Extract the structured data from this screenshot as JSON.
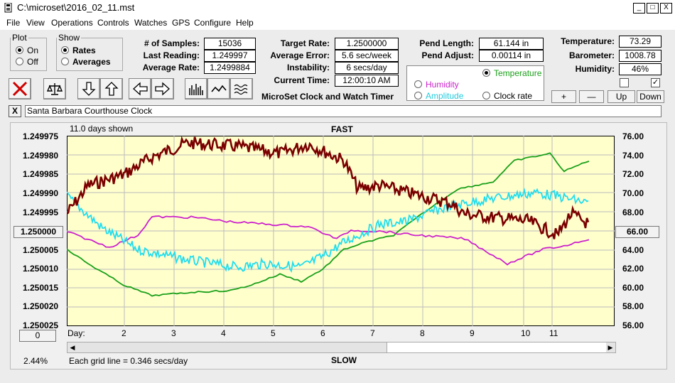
{
  "titlebar": {
    "title": "C:\\microset\\2016_02_11.mst",
    "minimize": "_",
    "maximize": "□",
    "close": "X"
  },
  "menu": [
    "File",
    "View",
    "Operations",
    "Controls",
    "Watches",
    "GPS",
    "Configure",
    "Help"
  ],
  "plot_group": {
    "legend": "Plot",
    "on": "On",
    "off": "Off"
  },
  "show_group": {
    "legend": "Show",
    "rates": "Rates",
    "averages": "Averages"
  },
  "stats": {
    "samples_label": "# of Samples:",
    "samples": "15036",
    "last_label": "Last Reading:",
    "last": "1.249997",
    "avg_label": "Average Rate:",
    "avg": "1.2499884",
    "target_label": "Target Rate:",
    "target": "1.2500000",
    "avgerr_label": "Average Error:",
    "avgerr": "5.6 sec/week",
    "instab_label": "Instability:",
    "instab": "6 secs/day",
    "time_label": "Current Time:",
    "time": "12:00:10 AM",
    "pendlen_label": "Pend Length:",
    "pendlen": "61.144 in",
    "pendadj_label": "Pend Adjust:",
    "pendadj": "0.00114 in",
    "temp_label": "Temperature:",
    "temp": "73.29",
    "baro_label": "Barometer:",
    "baro": "1008.78",
    "humid_label": "Humidity:",
    "humid": "46%"
  },
  "app_name": "MicroSet Clock and Watch Timer",
  "sensor_select": {
    "temperature": "Temperature",
    "humidity": "Humidity",
    "amplitude": "Amplitude",
    "clockrate": "Clock rate"
  },
  "small_buttons": {
    "plus": "+",
    "minus": "—",
    "up": "Up",
    "down": "Down"
  },
  "location": {
    "close": "X",
    "value": "Santa Barbara Courthouse Clock"
  },
  "plot": {
    "days_shown": "11.0 days shown",
    "fast": "FAST",
    "slow": "SLOW",
    "left_ticks": [
      "1.249975",
      "1.249980",
      "1.249985",
      "1.249990",
      "1.249995",
      "1.250005",
      "1.250010",
      "1.250015",
      "1.250020",
      "1.250025"
    ],
    "center_value": "1.250000",
    "right_ticks": [
      "76.00",
      "74.00",
      "72.00",
      "70.00",
      "68.00",
      "64.00",
      "62.00",
      "60.00",
      "58.00",
      "56.00"
    ],
    "right_center": "66.00",
    "day_label": "Day:",
    "days": [
      "2",
      "3",
      "4",
      "5",
      "6",
      "7",
      "8",
      "9",
      "10",
      "11"
    ],
    "bottom_left_value": "0",
    "percent": "2.44%",
    "grid_note": "Each grid line = 0.346 secs/day"
  },
  "colors": {
    "plot_bg": "#ffffcc",
    "rate": "#7a0000",
    "temperature": "#1aa01a",
    "humidity": "#cc22cc",
    "amplitude": "#22ddee",
    "x_button": "#d00000"
  }
}
